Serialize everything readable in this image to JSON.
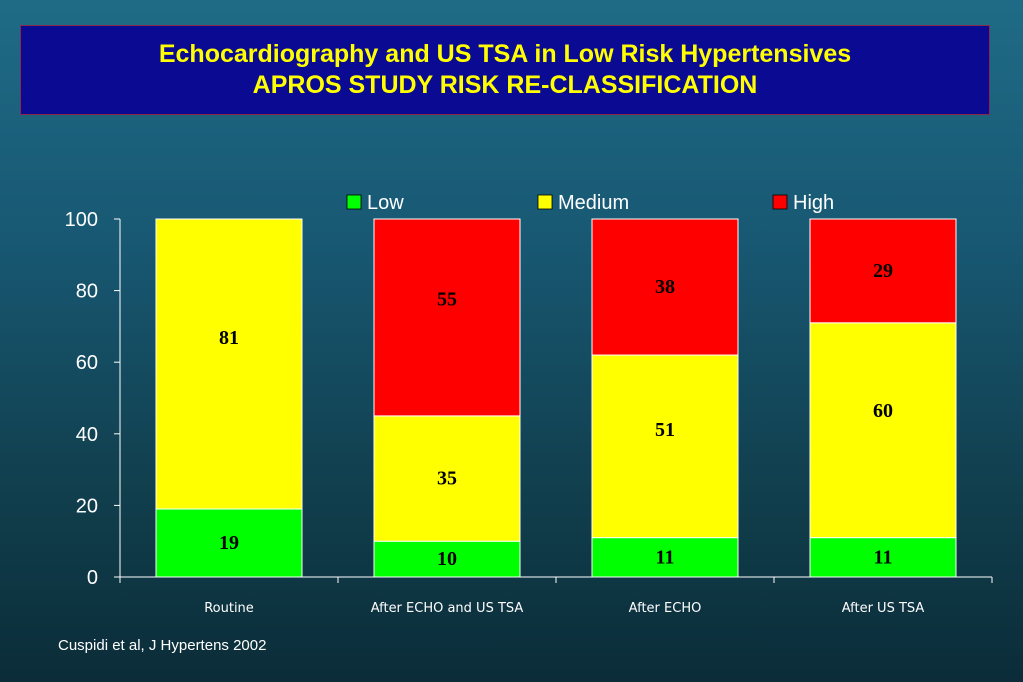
{
  "title": {
    "line1": "Echocardiography and US TSA in Low Risk Hypertensives",
    "line2": "APROS STUDY RISK RE-CLASSIFICATION"
  },
  "citation": "Cuspidi  et al, J Hypertens  2002",
  "chart_data": {
    "type": "bar",
    "stacked": true,
    "categories": [
      "Routine",
      "After ECHO and US TSA",
      "After ECHO",
      "After US TSA"
    ],
    "series": [
      {
        "name": "Low",
        "color": "#00ff00",
        "values": [
          19,
          10,
          11,
          11
        ]
      },
      {
        "name": "Medium",
        "color": "#ffff00",
        "values": [
          81,
          35,
          51,
          60
        ]
      },
      {
        "name": "High",
        "color": "#ff0000",
        "values": [
          0,
          55,
          38,
          29
        ]
      }
    ],
    "data_labels": [
      [
        "19",
        "10",
        "11",
        "11"
      ],
      [
        "81",
        "35",
        "51",
        "60"
      ],
      [
        "",
        "55",
        "38",
        "29"
      ]
    ],
    "ylim": [
      0,
      100
    ],
    "yticks": [
      "0",
      "20",
      "40",
      "60",
      "80",
      "100"
    ],
    "legend_position": "top",
    "grid": false,
    "xlabel": "",
    "ylabel": ""
  }
}
